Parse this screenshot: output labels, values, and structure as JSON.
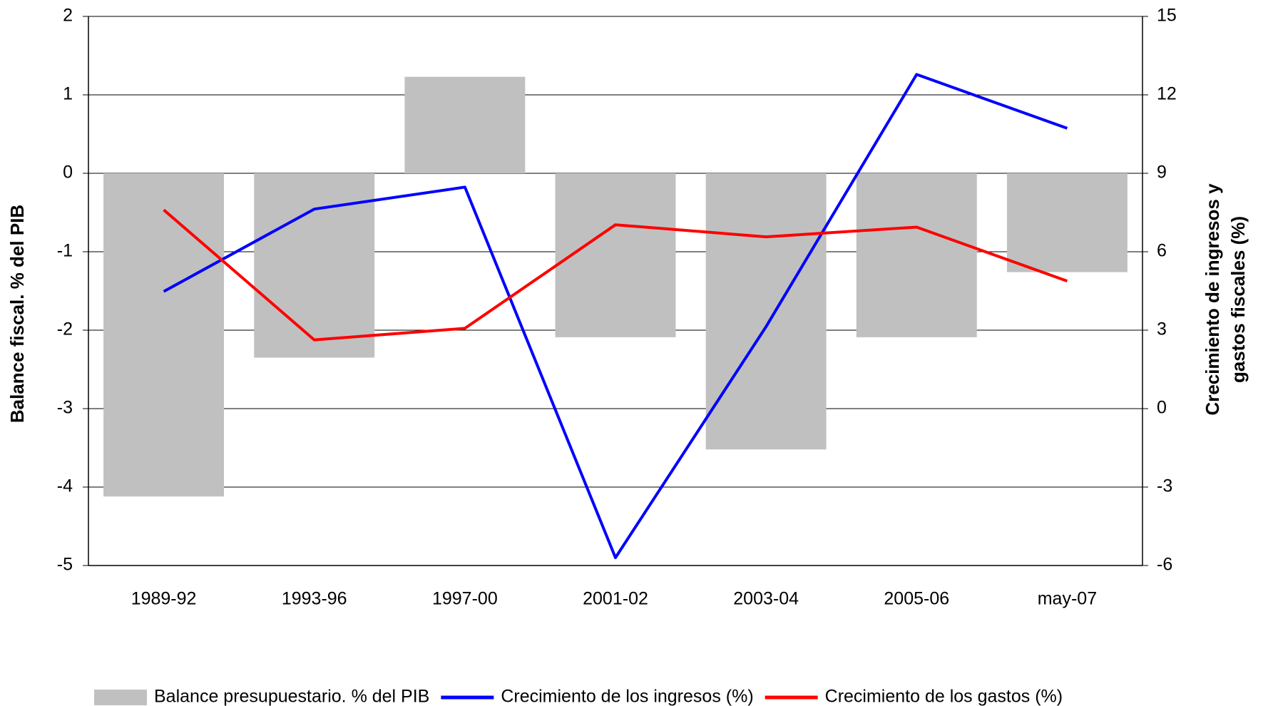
{
  "chart_data": {
    "type": "bar_line",
    "y_label": "Balance fiscal. % del PIB",
    "y2_label": "Crecimiento de ingresos y gastos fiscales (%)",
    "categories": [
      "1989-92",
      "1993-96",
      "1997-00",
      "2001-02",
      "2003-04",
      "2005-06",
      "may-07"
    ],
    "series": [
      {
        "name": "Balance presupuestario. % del PIB",
        "type": "bar",
        "color": "#c0c0c0",
        "values": [
          -4.12,
          -2.35,
          1.23,
          -2.09,
          -3.52,
          -2.09,
          -1.26
        ]
      },
      {
        "name": "Crecimiento de los ingresos (%)",
        "type": "line",
        "axis": "y2",
        "color": "#0000ff",
        "values": [
          4.48,
          7.63,
          8.47,
          -5.7,
          3.13,
          12.78,
          10.72
        ]
      },
      {
        "name": "Crecimiento de los gastos (%)",
        "type": "line",
        "axis": "y2",
        "color": "#ff0000",
        "values": [
          7.6,
          2.63,
          3.07,
          7.03,
          6.57,
          6.94,
          4.88
        ]
      }
    ],
    "ylim": [
      -5,
      2
    ],
    "yticks": [
      -5,
      -4,
      -3,
      -2,
      -1,
      0,
      1,
      2
    ],
    "y2lim": [
      -6,
      15
    ],
    "y2ticks": [
      -6,
      -3,
      0,
      3,
      6,
      9,
      12,
      15
    ],
    "grid": true
  }
}
